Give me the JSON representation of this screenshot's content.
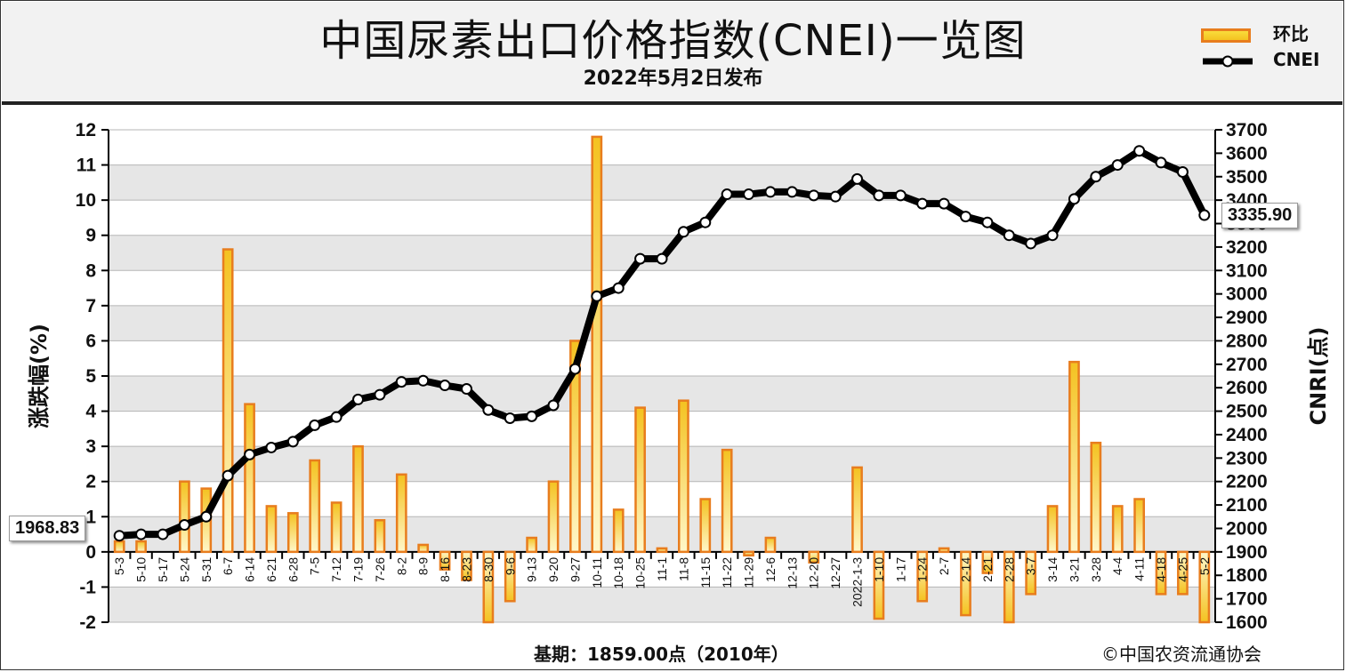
{
  "header": {
    "title": "中国尿素出口价格指数(CNEI)一览图",
    "subtitle": "2022年5月2日发布"
  },
  "legend": {
    "bar_label": "环比",
    "line_label": "CNEI"
  },
  "footer": {
    "base": "基期：1859.00点（2010年）",
    "copyright": "©中国农资流通协会"
  },
  "callouts": {
    "first": "1968.83",
    "last": "3335.90"
  },
  "colors": {
    "bar_fill_top": "#f4c220",
    "bar_fill_bottom": "#fff7c9",
    "bar_border": "#e87d1e",
    "line": "#000000",
    "plot_band_gray": "#e6e6e6",
    "plot_band_white": "#ffffff"
  },
  "chart_data": {
    "type": "bar+line",
    "title": "中国尿素出口价格指数(CNEI)一览图",
    "y_left_label": "涨跌幅(%)",
    "y_right_label": "CNRI(点)",
    "y_left_range": [
      -2,
      12
    ],
    "y_left_ticks": [
      "-2",
      "-1",
      "0",
      "1",
      "2",
      "3",
      "4",
      "5",
      "6",
      "7",
      "8",
      "9",
      "10",
      "11",
      "12"
    ],
    "y_right_range": [
      1600,
      3700
    ],
    "y_right_ticks": [
      "1600",
      "1700",
      "1800",
      "1900",
      "2000",
      "2100",
      "2200",
      "2300",
      "2400",
      "2500",
      "2600",
      "2700",
      "2800",
      "2900",
      "3000",
      "3100",
      "3200",
      "3300",
      "3400",
      "3500",
      "3600",
      "3700"
    ],
    "categories": [
      "5-3",
      "5-10",
      "5-17",
      "5-24",
      "5-31",
      "6-7",
      "6-14",
      "6-21",
      "6-28",
      "7-5",
      "7-12",
      "7-19",
      "7-26",
      "8-2",
      "8-9",
      "8-16",
      "8-23",
      "8-30",
      "9-6",
      "9-13",
      "9-20",
      "9-27",
      "10-11",
      "10-18",
      "10-25",
      "11-1",
      "11-8",
      "11-15",
      "11-22",
      "11-29",
      "12-6",
      "12-13",
      "12-20",
      "12-27",
      "2022-1-3",
      "1-10",
      "1-17",
      "1-24",
      "2-7",
      "2-14",
      "2-21",
      "2-28",
      "3-7",
      "3-14",
      "3-21",
      "3-28",
      "4-4",
      "4-11",
      "4-18",
      "4-25",
      "5-2"
    ],
    "series": [
      {
        "name": "环比",
        "type": "bar",
        "values": [
          0.3,
          0.3,
          0.0,
          2.0,
          1.8,
          8.6,
          4.2,
          1.3,
          1.1,
          2.6,
          1.4,
          3.0,
          0.9,
          2.2,
          0.2,
          -0.5,
          -0.8,
          -2.0,
          -1.4,
          0.4,
          2.0,
          6.0,
          11.8,
          1.2,
          4.1,
          0.1,
          4.3,
          1.5,
          2.9,
          -0.1,
          0.4,
          0.0,
          -0.3,
          0.0,
          2.4,
          -1.9,
          0.0,
          -1.4,
          0.1,
          -1.8,
          -0.6,
          -2.0,
          -1.2,
          1.3,
          5.4,
          3.1,
          1.3,
          1.5,
          -1.2,
          -1.2,
          -2.0
        ]
      },
      {
        "name": "CNEI",
        "type": "line",
        "values": [
          1968.83,
          1975,
          1975,
          2015,
          2050,
          2225,
          2315,
          2345,
          2370,
          2440,
          2475,
          2550,
          2570,
          2625,
          2630,
          2610,
          2595,
          2505,
          2470,
          2478,
          2525,
          2680,
          2990,
          3025,
          3150,
          3150,
          3265,
          3305,
          3425,
          3425,
          3435,
          3435,
          3420,
          3415,
          3490,
          3420,
          3420,
          3385,
          3385,
          3330,
          3305,
          3250,
          3215,
          3250,
          3405,
          3500,
          3550,
          3610,
          3560,
          3520,
          3335.9
        ]
      }
    ]
  }
}
